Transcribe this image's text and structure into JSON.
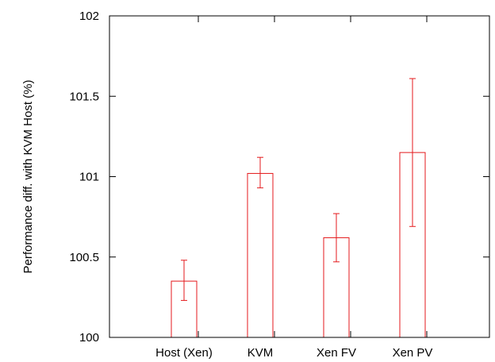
{
  "chart_data": {
    "type": "bar",
    "title": "",
    "xlabel": "",
    "ylabel": "Performance diff. with KVM Host (%)",
    "ylim": [
      100,
      102
    ],
    "yticks": [
      100,
      100.5,
      101,
      101.5,
      102
    ],
    "ytick_labels": [
      "100",
      "100.5",
      "101",
      "101.5",
      "102"
    ],
    "grid": false,
    "categories": [
      "Host (Xen)",
      "KVM",
      "Xen FV",
      "Xen PV"
    ],
    "series": [
      {
        "values": [
          100.35,
          101.02,
          100.62,
          101.15
        ],
        "error_low": [
          100.23,
          100.93,
          100.47,
          100.69
        ],
        "error_high": [
          100.48,
          101.12,
          100.77,
          101.61
        ]
      }
    ],
    "colors": {
      "bar": "#e41a1c",
      "axis": "#000000"
    }
  }
}
